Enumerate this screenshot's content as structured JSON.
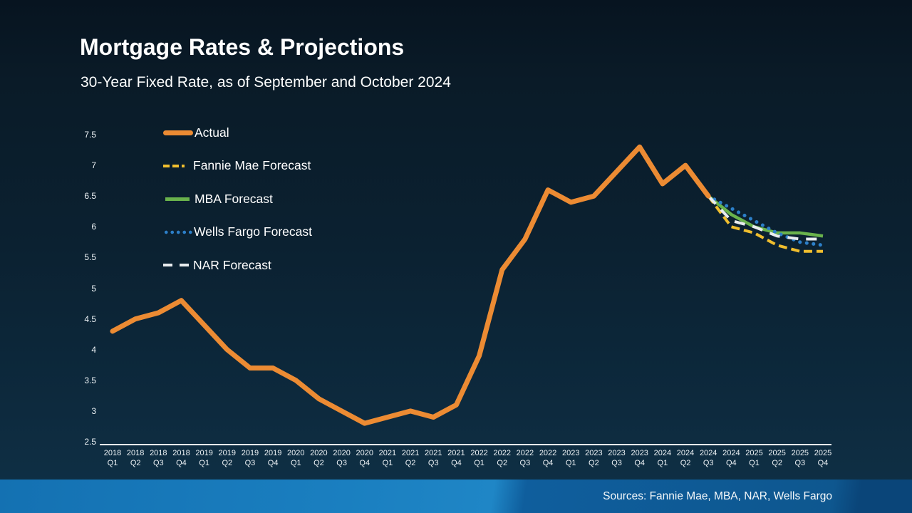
{
  "footer": {
    "sources": "Sources: Fannie Mae, MBA, NAR, Wells Fargo"
  },
  "chart_data": {
    "type": "line",
    "title": "Mortgage Rates & Projections",
    "subtitle": "30-Year Fixed Rate, as of September and October 2024",
    "legend_position": "top-left",
    "grid": false,
    "y_axis": {
      "min": 2.5,
      "max": 7.5,
      "tick_step": 0.5,
      "ticks": [
        "7.5",
        "7",
        "6.5",
        "6",
        "5.5",
        "5",
        "4.5",
        "4",
        "3.5",
        "3",
        "2.5"
      ]
    },
    "x_labels": [
      [
        "2018",
        "Q1"
      ],
      [
        "2018",
        "Q2"
      ],
      [
        "2018",
        "Q3"
      ],
      [
        "2018",
        "Q4"
      ],
      [
        "2019",
        "Q1"
      ],
      [
        "2019",
        "Q2"
      ],
      [
        "2019",
        "Q3"
      ],
      [
        "2019",
        "Q4"
      ],
      [
        "2020",
        "Q1"
      ],
      [
        "2020",
        "Q2"
      ],
      [
        "2020",
        "Q3"
      ],
      [
        "2020",
        "Q4"
      ],
      [
        "2021",
        "Q1"
      ],
      [
        "2021",
        "Q2"
      ],
      [
        "2021",
        "Q3"
      ],
      [
        "2021",
        "Q4"
      ],
      [
        "2022",
        "Q1"
      ],
      [
        "2022",
        "Q2"
      ],
      [
        "2022",
        "Q3"
      ],
      [
        "2022",
        "Q4"
      ],
      [
        "2023",
        "Q1"
      ],
      [
        "2023",
        "Q2"
      ],
      [
        "2023",
        "Q3"
      ],
      [
        "2023",
        "Q4"
      ],
      [
        "2024",
        "Q1"
      ],
      [
        "2024",
        "Q2"
      ],
      [
        "2024",
        "Q3"
      ],
      [
        "2024",
        "Q4"
      ],
      [
        "2025",
        "Q1"
      ],
      [
        "2025",
        "Q2"
      ],
      [
        "2025",
        "Q3"
      ],
      [
        "2025",
        "Q4"
      ]
    ],
    "series": [
      {
        "name": "Actual",
        "color": "#EC8B33",
        "style": "solid-thick",
        "start_index": 0,
        "values": [
          4.3,
          4.5,
          4.6,
          4.8,
          4.4,
          4.0,
          3.7,
          3.7,
          3.5,
          3.2,
          3.0,
          2.8,
          2.9,
          3.0,
          2.9,
          3.1,
          3.9,
          5.3,
          5.8,
          6.6,
          6.4,
          6.5,
          6.9,
          7.3,
          6.7,
          7.0,
          6.5
        ]
      },
      {
        "name": "Fannie Mae Forecast",
        "color": "#F0BE2E",
        "style": "dashed",
        "start_index": 26,
        "values": [
          6.5,
          6.0,
          5.9,
          5.7,
          5.6,
          5.6
        ]
      },
      {
        "name": "MBA Forecast",
        "color": "#69B24C",
        "style": "solid",
        "start_index": 26,
        "values": [
          6.5,
          6.2,
          6.0,
          5.9,
          5.9,
          5.85
        ]
      },
      {
        "name": "Wells Fargo Forecast",
        "color": "#2C7FC8",
        "style": "dotted",
        "start_index": 26,
        "values": [
          6.5,
          6.3,
          6.1,
          5.9,
          5.75,
          5.7
        ]
      },
      {
        "name": "NAR Forecast",
        "color": "#E8ECEF",
        "style": "long-dash",
        "start_index": 26,
        "values": [
          6.5,
          6.1,
          6.0,
          5.85,
          5.8,
          5.8
        ]
      }
    ]
  }
}
